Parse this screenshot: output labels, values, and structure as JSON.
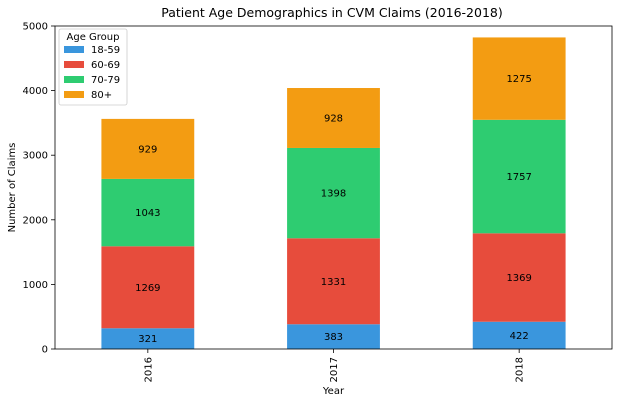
{
  "chart_data": {
    "type": "bar",
    "stacked": true,
    "title": "Patient Age Demographics in CVM Claims (2016-2018)",
    "xlabel": "Year",
    "ylabel": "Number of Claims",
    "categories": [
      "2016",
      "2017",
      "2018"
    ],
    "ylim": [
      0,
      5000
    ],
    "yticks": [
      0,
      1000,
      2000,
      3000,
      4000,
      5000
    ],
    "grid": false,
    "legend": {
      "title": "Age Group",
      "placement": "top-left"
    },
    "series": [
      {
        "name": "18-59",
        "color": "#3a96dd",
        "values": [
          321,
          383,
          422
        ]
      },
      {
        "name": "60-69",
        "color": "#e74c3c",
        "values": [
          1269,
          1331,
          1369
        ]
      },
      {
        "name": "70-79",
        "color": "#2ecc71",
        "values": [
          1043,
          1398,
          1757
        ]
      },
      {
        "name": "80+",
        "color": "#f39c12",
        "values": [
          929,
          928,
          1275
        ]
      }
    ]
  }
}
